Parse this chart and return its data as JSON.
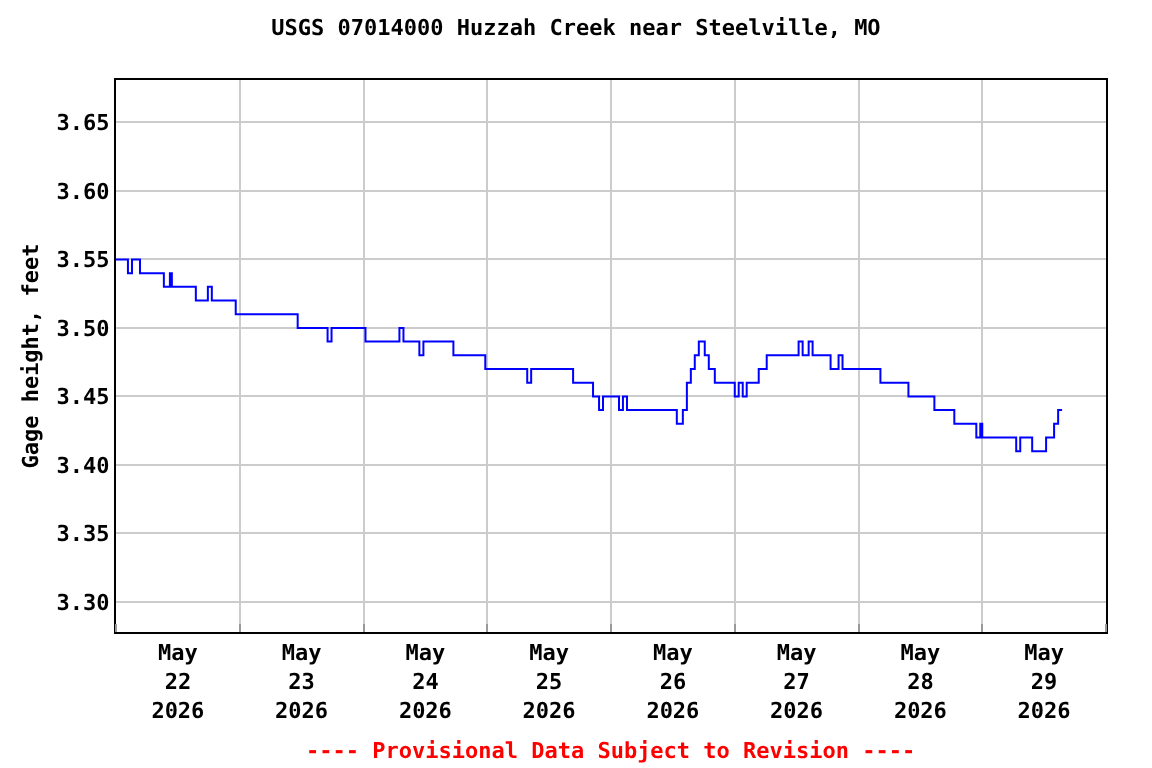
{
  "chart_data": {
    "type": "step",
    "title": "USGS 07014000 Huzzah Creek near Steelville, MO",
    "ylabel": "Gage height, feet",
    "annotations": [
      "---- Provisional Data Subject to Revision ----"
    ],
    "x": [
      "2026-05-22T00:00",
      "2026-05-22T02:19",
      "2026-05-22T03:06",
      "2026-05-22T04:39",
      "2026-05-22T09:17",
      "2026-05-22T10:27",
      "2026-05-22T10:50",
      "2026-05-22T15:29",
      "2026-05-22T17:49",
      "2026-05-22T18:35",
      "2026-05-22T23:13",
      "2026-05-23T11:14",
      "2026-05-23T17:02",
      "2026-05-23T17:48",
      "2026-05-24T00:23",
      "2026-05-24T06:58",
      "2026-05-24T07:45",
      "2026-05-24T10:50",
      "2026-05-24T11:37",
      "2026-05-24T17:26",
      "2026-05-24T23:37",
      "2026-05-25T07:45",
      "2026-05-25T08:31",
      "2026-05-25T16:39",
      "2026-05-25T20:31",
      "2026-05-25T21:41",
      "2026-05-25T22:27",
      "2026-05-26T01:33",
      "2026-05-26T02:19",
      "2026-05-26T03:06",
      "2026-05-26T12:46",
      "2026-05-26T13:56",
      "2026-05-26T14:43",
      "2026-05-26T15:29",
      "2026-05-26T16:15",
      "2026-05-26T17:02",
      "2026-05-26T18:11",
      "2026-05-26T18:58",
      "2026-05-26T20:08",
      "2026-05-27T00:00",
      "2026-05-27T00:46",
      "2026-05-27T01:33",
      "2026-05-27T02:19",
      "2026-05-27T04:39",
      "2026-05-27T06:12",
      "2026-05-27T12:23",
      "2026-05-27T13:10",
      "2026-05-27T14:20",
      "2026-05-27T15:06",
      "2026-05-27T18:35",
      "2026-05-27T20:08",
      "2026-05-27T20:54",
      "2026-05-28T04:15",
      "2026-05-28T09:41",
      "2026-05-28T14:43",
      "2026-05-28T18:35",
      "2026-05-28T22:51",
      "2026-05-28T23:37",
      "2026-05-29T00:00",
      "2026-05-29T06:35",
      "2026-05-29T07:22",
      "2026-05-29T09:41",
      "2026-05-29T12:23",
      "2026-05-29T13:56",
      "2026-05-29T14:43",
      "2026-05-29T15:29"
    ],
    "series": [
      {
        "color": "#0000ff",
        "values": [
          3.55,
          3.54,
          3.55,
          3.54,
          3.53,
          3.54,
          3.53,
          3.52,
          3.53,
          3.52,
          3.51,
          3.5,
          3.49,
          3.5,
          3.49,
          3.5,
          3.49,
          3.48,
          3.49,
          3.48,
          3.47,
          3.46,
          3.47,
          3.46,
          3.45,
          3.44,
          3.45,
          3.44,
          3.45,
          3.44,
          3.43,
          3.44,
          3.46,
          3.47,
          3.48,
          3.49,
          3.48,
          3.47,
          3.46,
          3.45,
          3.46,
          3.45,
          3.46,
          3.47,
          3.48,
          3.49,
          3.48,
          3.49,
          3.48,
          3.47,
          3.48,
          3.47,
          3.46,
          3.45,
          3.44,
          3.43,
          3.42,
          3.43,
          3.42,
          3.41,
          3.42,
          3.41,
          3.42,
          3.43,
          3.44,
          3.44
        ]
      }
    ],
    "xlim": [
      "2026-05-22T00:00",
      "2026-05-30T00:00"
    ],
    "xticks": [
      {
        "value": "2026-05-22T00:00",
        "label": null
      },
      {
        "value": "2026-05-22T12:00",
        "label": "May\n22\n2026"
      },
      {
        "value": "2026-05-23T00:00",
        "label": null
      },
      {
        "value": "2026-05-23T12:00",
        "label": "May\n23\n2026"
      },
      {
        "value": "2026-05-24T00:00",
        "label": null
      },
      {
        "value": "2026-05-24T12:00",
        "label": "May\n24\n2026"
      },
      {
        "value": "2026-05-25T00:00",
        "label": null
      },
      {
        "value": "2026-05-25T12:00",
        "label": "May\n25\n2026"
      },
      {
        "value": "2026-05-26T00:00",
        "label": null
      },
      {
        "value": "2026-05-26T12:00",
        "label": "May\n26\n2026"
      },
      {
        "value": "2026-05-27T00:00",
        "label": null
      },
      {
        "value": "2026-05-27T12:00",
        "label": "May\n27\n2026"
      },
      {
        "value": "2026-05-28T00:00",
        "label": null
      },
      {
        "value": "2026-05-28T12:00",
        "label": "May\n28\n2026"
      },
      {
        "value": "2026-05-29T00:00",
        "label": null
      },
      {
        "value": "2026-05-29T12:00",
        "label": "May\n29\n2026"
      },
      {
        "value": "2026-05-30T00:00",
        "label": null
      }
    ],
    "ylim": [
      3.278,
      3.681
    ],
    "yticks": [
      {
        "value": 3.3,
        "label": "3.30"
      },
      {
        "value": 3.35,
        "label": "3.35"
      },
      {
        "value": 3.4,
        "label": "3.40"
      },
      {
        "value": 3.45,
        "label": "3.45"
      },
      {
        "value": 3.5,
        "label": "3.50"
      },
      {
        "value": 3.55,
        "label": "3.55"
      },
      {
        "value": 3.6,
        "label": "3.60"
      },
      {
        "value": 3.65,
        "label": "3.65"
      }
    ],
    "grid": true,
    "marker": "none",
    "line_style": "solid"
  }
}
